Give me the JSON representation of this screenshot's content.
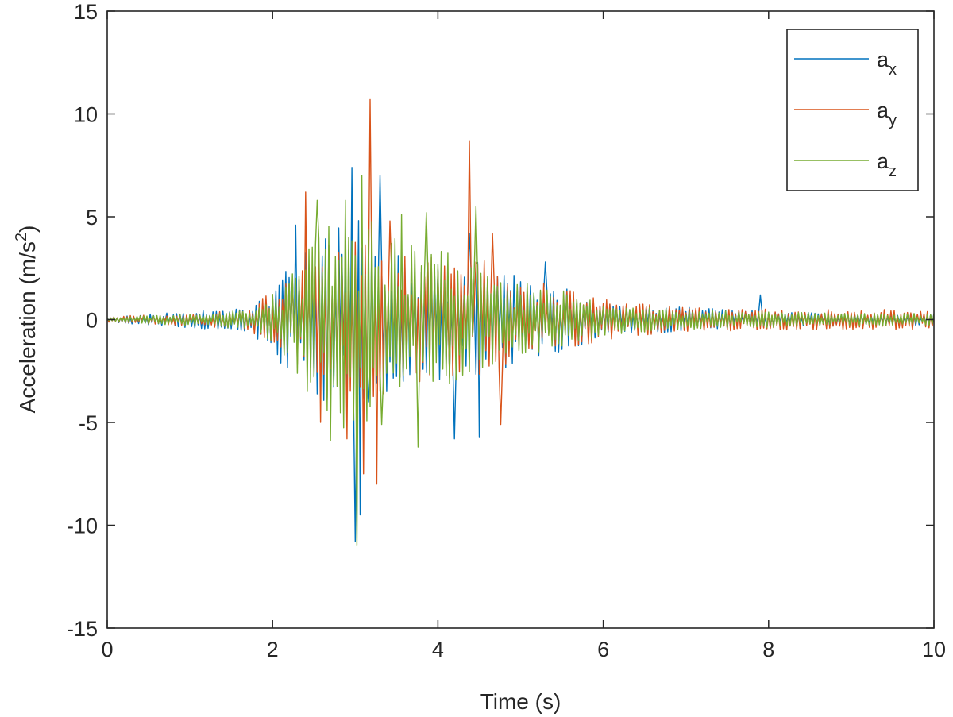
{
  "chart_data": {
    "type": "line",
    "title": "",
    "xlabel": "Time (s)",
    "ylabel_main": "Acceleration (m/s",
    "ylabel_sup": "2",
    "ylabel_end": ")",
    "xlim": [
      0,
      10
    ],
    "ylim": [
      -15,
      15
    ],
    "x_ticks": [
      0,
      2,
      4,
      6,
      8,
      10
    ],
    "y_ticks": [
      -15,
      -10,
      -5,
      0,
      5,
      10,
      15
    ],
    "x_tick_labels": [
      "0",
      "2",
      "4",
      "6",
      "8",
      "10"
    ],
    "y_tick_labels": [
      "-15",
      "-10",
      "-5",
      "0",
      "5",
      "10",
      "15"
    ],
    "grid": false,
    "legend_position": "top-right",
    "sample_interval_s": 0.02,
    "series": [
      {
        "base": "a",
        "sub": "x",
        "name": "ax",
        "color": "#0072BD",
        "envelope": [
          [
            0,
            0.15
          ],
          [
            1,
            0.4
          ],
          [
            1.7,
            0.6
          ],
          [
            2.2,
            2.5
          ],
          [
            2.6,
            4
          ],
          [
            3.0,
            5
          ],
          [
            3.4,
            3.5
          ],
          [
            4.0,
            3
          ],
          [
            4.5,
            3
          ],
          [
            5.0,
            2
          ],
          [
            5.6,
            1.5
          ],
          [
            6.0,
            0.8
          ],
          [
            7.0,
            0.6
          ],
          [
            8.0,
            0.4
          ],
          [
            9.0,
            0.3
          ],
          [
            10,
            0.3
          ]
        ],
        "peaks": [
          [
            2.28,
            4.6
          ],
          [
            2.95,
            7.4
          ],
          [
            3.0,
            -10.8
          ],
          [
            3.05,
            -9.5
          ],
          [
            3.15,
            -4
          ],
          [
            3.3,
            7
          ],
          [
            3.38,
            -3.5
          ],
          [
            4.2,
            -5.8
          ],
          [
            4.38,
            4.2
          ],
          [
            4.5,
            -5.7
          ],
          [
            5.3,
            2.8
          ],
          [
            7.9,
            1.2
          ]
        ]
      },
      {
        "base": "a",
        "sub": "y",
        "name": "ay",
        "color": "#D95319",
        "envelope": [
          [
            0,
            0.15
          ],
          [
            1,
            0.3
          ],
          [
            1.7,
            0.5
          ],
          [
            2.2,
            2
          ],
          [
            2.5,
            4
          ],
          [
            3.0,
            4.5
          ],
          [
            3.4,
            3.5
          ],
          [
            4.0,
            3
          ],
          [
            4.6,
            3
          ],
          [
            5.0,
            2
          ],
          [
            5.6,
            1.5
          ],
          [
            6.0,
            1
          ],
          [
            7.0,
            0.6
          ],
          [
            8.0,
            0.5
          ],
          [
            9.0,
            0.5
          ],
          [
            10,
            0.5
          ]
        ],
        "peaks": [
          [
            2.3,
            -2.2
          ],
          [
            2.4,
            6.2
          ],
          [
            2.58,
            -5
          ],
          [
            2.9,
            -5.8
          ],
          [
            3.1,
            -7.5
          ],
          [
            3.18,
            10.7
          ],
          [
            3.25,
            -8
          ],
          [
            3.42,
            4.8
          ],
          [
            4.1,
            -2
          ],
          [
            4.38,
            8.7
          ],
          [
            4.45,
            2.8
          ],
          [
            4.66,
            4.2
          ],
          [
            4.75,
            -5.1
          ]
        ]
      },
      {
        "base": "a",
        "sub": "z",
        "name": "az",
        "color": "#77AC30",
        "envelope": [
          [
            0,
            0.1
          ],
          [
            1,
            0.3
          ],
          [
            1.8,
            0.5
          ],
          [
            2.2,
            2
          ],
          [
            2.5,
            4.5
          ],
          [
            2.8,
            5.5
          ],
          [
            3.0,
            5.5
          ],
          [
            3.5,
            4
          ],
          [
            4.0,
            3.5
          ],
          [
            4.5,
            2.5
          ],
          [
            5.0,
            1.8
          ],
          [
            5.5,
            1.5
          ],
          [
            6.0,
            0.8
          ],
          [
            7.0,
            0.5
          ],
          [
            8.0,
            0.4
          ],
          [
            9.0,
            0.3
          ],
          [
            10,
            0.3
          ]
        ],
        "peaks": [
          [
            2.55,
            5.8
          ],
          [
            2.7,
            -5.9
          ],
          [
            2.87,
            5.8
          ],
          [
            3.02,
            -11
          ],
          [
            3.08,
            7
          ],
          [
            3.32,
            -5.1
          ],
          [
            3.55,
            5.1
          ],
          [
            3.75,
            -6.2
          ],
          [
            3.86,
            5.2
          ],
          [
            4.45,
            5.5
          ]
        ]
      }
    ]
  }
}
